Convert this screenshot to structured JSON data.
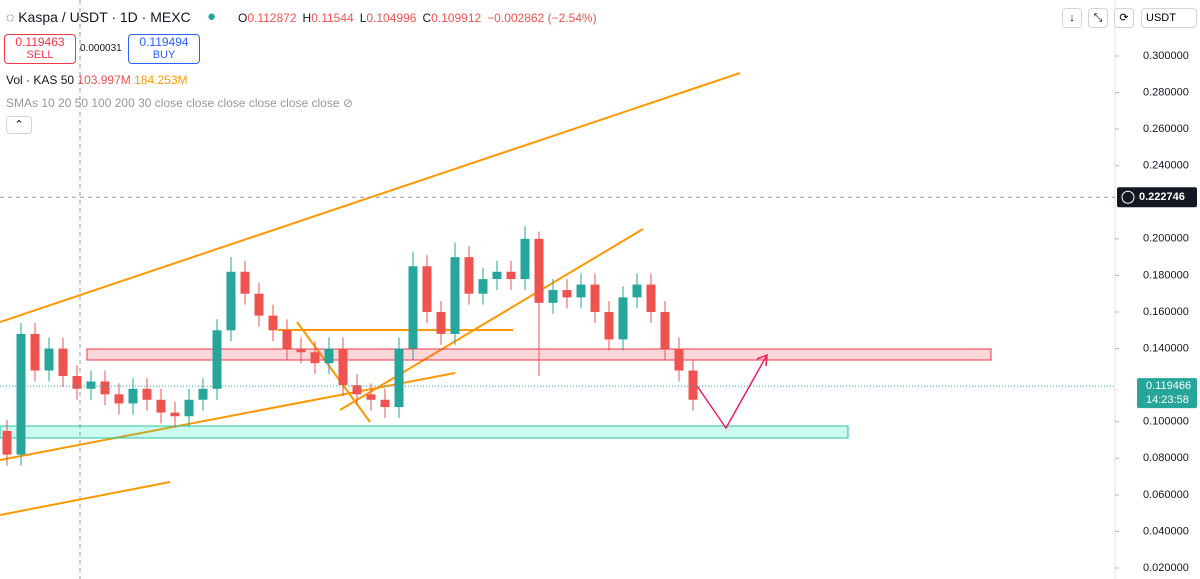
{
  "header": {
    "symbol": "Kaspa / USDT · 1D · MEXC",
    "ohlc": [
      {
        "key": "O",
        "value": 0.112872
      },
      {
        "key": "H",
        "value": 0.11544
      },
      {
        "key": "L",
        "value": 0.104996
      },
      {
        "key": "C",
        "value": 0.109912
      }
    ],
    "change": "−0.002862 (−2.54%)"
  },
  "trade": {
    "sell_price": "0.119463",
    "sell": "SELL",
    "spread": "0.000031",
    "buy_price": "0.119494",
    "buy": "BUY"
  },
  "indicators": {
    "volume": "Vol · KAS 50",
    "vol_values": [
      "103.997M",
      "184.253M"
    ],
    "sma": "SMAs 10 20 50 100 200 30 close close close close close close"
  },
  "currency": "USDT",
  "chart_data": {
    "type": "candlestick",
    "open": [
      0.095,
      0.082,
      0.148,
      0.128,
      0.14,
      0.125,
      0.118,
      0.122,
      0.115,
      0.11,
      0.118,
      0.112,
      0.105,
      0.103,
      0.112,
      0.118,
      0.15,
      0.182,
      0.17,
      0.158,
      0.15,
      0.14,
      0.138,
      0.132,
      0.14,
      0.12,
      0.115,
      0.112,
      0.108,
      0.14,
      0.185,
      0.16,
      0.148,
      0.19,
      0.17,
      0.178,
      0.182,
      0.178,
      0.2,
      0.165,
      0.172,
      0.168,
      0.175,
      0.16,
      0.145,
      0.168,
      0.175,
      0.16,
      0.14,
      0.128
    ],
    "high": [
      0.101,
      0.154,
      0.154,
      0.146,
      0.146,
      0.131,
      0.128,
      0.128,
      0.121,
      0.124,
      0.124,
      0.118,
      0.111,
      0.118,
      0.124,
      0.156,
      0.19,
      0.188,
      0.176,
      0.164,
      0.156,
      0.146,
      0.144,
      0.146,
      0.146,
      0.126,
      0.121,
      0.118,
      0.146,
      0.193,
      0.191,
      0.166,
      0.198,
      0.196,
      0.184,
      0.188,
      0.188,
      0.207,
      0.204,
      0.178,
      0.178,
      0.181,
      0.181,
      0.166,
      0.174,
      0.181,
      0.181,
      0.166,
      0.146,
      0.134
    ],
    "low": [
      0.076,
      0.076,
      0.122,
      0.122,
      0.119,
      0.112,
      0.112,
      0.109,
      0.104,
      0.104,
      0.106,
      0.099,
      0.097,
      0.097,
      0.106,
      0.112,
      0.144,
      0.164,
      0.152,
      0.144,
      0.134,
      0.132,
      0.126,
      0.126,
      0.114,
      0.109,
      0.106,
      0.102,
      0.102,
      0.134,
      0.154,
      0.142,
      0.142,
      0.164,
      0.164,
      0.172,
      0.172,
      0.172,
      0.125,
      0.159,
      0.162,
      0.162,
      0.154,
      0.139,
      0.139,
      0.162,
      0.154,
      0.134,
      0.122,
      0.106
    ],
    "close": [
      0.082,
      0.148,
      0.128,
      0.14,
      0.125,
      0.118,
      0.122,
      0.115,
      0.11,
      0.118,
      0.112,
      0.105,
      0.103,
      0.112,
      0.118,
      0.15,
      0.182,
      0.17,
      0.158,
      0.15,
      0.14,
      0.138,
      0.132,
      0.14,
      0.12,
      0.115,
      0.112,
      0.108,
      0.14,
      0.185,
      0.16,
      0.148,
      0.19,
      0.17,
      0.178,
      0.182,
      0.178,
      0.2,
      0.165,
      0.172,
      0.168,
      0.175,
      0.16,
      0.145,
      0.168,
      0.175,
      0.16,
      0.14,
      0.128,
      0.112
    ],
    "up_color": "#26a69a",
    "down_color": "#ef5350",
    "ylim": [
      0.014,
      0.3306
    ],
    "yticks": [
      {
        "value": 0.3,
        "label": "0.300000"
      },
      {
        "value": 0.28,
        "label": "0.280000"
      },
      {
        "value": 0.26,
        "label": "0.260000"
      },
      {
        "value": 0.24,
        "label": "0.240000"
      },
      {
        "value": 0.2,
        "label": "0.200000"
      },
      {
        "value": 0.18,
        "label": "0.180000"
      },
      {
        "value": 0.16,
        "label": "0.160000"
      },
      {
        "value": 0.14,
        "label": "0.140000"
      },
      {
        "value": 0.1,
        "label": "0.100000"
      },
      {
        "value": 0.08,
        "label": "0.080000"
      },
      {
        "value": 0.06,
        "label": "0.060000"
      },
      {
        "value": 0.04,
        "label": "0.040000"
      },
      {
        "value": 0.02,
        "label": "0.020000"
      }
    ],
    "last_price": 0.119466,
    "countdown": "14:23:58",
    "crosshair_price": 0.222746
  }
}
